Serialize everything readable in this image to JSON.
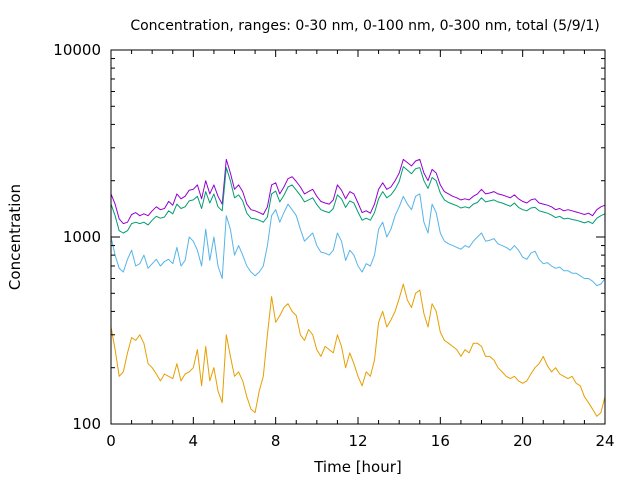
{
  "chart_data": {
    "type": "line",
    "title": "Concentration, ranges: 0-30 nm, 0-100 nm, 0-300 nm, total (5/9/1)",
    "xlabel": "Time [hour]",
    "ylabel": "Concentration",
    "xlim": [
      0,
      24
    ],
    "ylim": [
      100,
      10000
    ],
    "y_scale": "log",
    "x_ticks": [
      0,
      4,
      8,
      12,
      16,
      20,
      24
    ],
    "x_tick_labels": [
      "0",
      "4",
      "8",
      "12",
      "16",
      "20",
      "24"
    ],
    "y_ticks": [
      100,
      1000,
      10000
    ],
    "y_tick_labels": [
      "100",
      "1000",
      "10000"
    ],
    "grid": false,
    "legend": "none",
    "x": [
      0,
      0.2,
      0.4,
      0.6,
      0.8,
      1.0,
      1.2,
      1.4,
      1.6,
      1.8,
      2.0,
      2.2,
      2.4,
      2.6,
      2.8,
      3.0,
      3.2,
      3.4,
      3.6,
      3.8,
      4.0,
      4.2,
      4.4,
      4.6,
      4.8,
      5.0,
      5.2,
      5.4,
      5.6,
      5.8,
      6.0,
      6.2,
      6.4,
      6.6,
      6.8,
      7.0,
      7.2,
      7.4,
      7.6,
      7.8,
      8.0,
      8.2,
      8.4,
      8.6,
      8.8,
      9.0,
      9.2,
      9.4,
      9.6,
      9.8,
      10.0,
      10.2,
      10.4,
      10.6,
      10.8,
      11.0,
      11.2,
      11.4,
      11.6,
      11.8,
      12.0,
      12.2,
      12.4,
      12.6,
      12.8,
      13.0,
      13.2,
      13.4,
      13.6,
      13.8,
      14.0,
      14.2,
      14.4,
      14.6,
      14.8,
      15.0,
      15.2,
      15.4,
      15.6,
      15.8,
      16.0,
      16.2,
      16.4,
      16.6,
      16.8,
      17.0,
      17.2,
      17.4,
      17.6,
      17.8,
      18.0,
      18.2,
      18.4,
      18.6,
      18.8,
      19.0,
      19.2,
      19.4,
      19.6,
      19.8,
      20.0,
      20.2,
      20.4,
      20.6,
      20.8,
      21.0,
      21.2,
      21.4,
      21.6,
      21.8,
      22.0,
      22.2,
      22.4,
      22.6,
      22.8,
      23.0,
      23.2,
      23.4,
      23.6,
      23.8,
      24.0
    ],
    "series": [
      {
        "color": "#9400d3",
        "values": [
          1700,
          1500,
          1250,
          1180,
          1200,
          1320,
          1350,
          1300,
          1330,
          1300,
          1380,
          1450,
          1400,
          1420,
          1550,
          1480,
          1700,
          1600,
          1650,
          1780,
          1800,
          1900,
          1600,
          2000,
          1700,
          1900,
          1650,
          1500,
          2600,
          2200,
          1800,
          1900,
          1750,
          1500,
          1400,
          1380,
          1350,
          1320,
          1450,
          1900,
          1950,
          1700,
          1850,
          2050,
          2100,
          1980,
          1850,
          1700,
          1750,
          1800,
          1650,
          1550,
          1520,
          1500,
          1580,
          1900,
          1780,
          1600,
          1750,
          1700,
          1520,
          1350,
          1380,
          1340,
          1500,
          1800,
          1950,
          1800,
          1850,
          2000,
          2200,
          2600,
          2500,
          2400,
          2550,
          2600,
          2200,
          2000,
          2300,
          2200,
          1900,
          1750,
          1700,
          1650,
          1620,
          1580,
          1600,
          1580,
          1650,
          1700,
          1800,
          1700,
          1720,
          1750,
          1700,
          1680,
          1650,
          1620,
          1680,
          1600,
          1550,
          1520,
          1580,
          1600,
          1520,
          1500,
          1480,
          1450,
          1400,
          1420,
          1380,
          1400,
          1380,
          1360,
          1340,
          1320,
          1340,
          1300,
          1400,
          1450,
          1480
        ]
      },
      {
        "color": "#009e73",
        "values": [
          1500,
          1300,
          1080,
          1050,
          1080,
          1180,
          1200,
          1180,
          1200,
          1160,
          1230,
          1290,
          1260,
          1280,
          1380,
          1330,
          1500,
          1420,
          1450,
          1560,
          1580,
          1650,
          1420,
          1750,
          1520,
          1700,
          1450,
          1380,
          2350,
          2000,
          1620,
          1680,
          1560,
          1340,
          1260,
          1250,
          1230,
          1200,
          1280,
          1700,
          1760,
          1540,
          1670,
          1850,
          1900,
          1780,
          1670,
          1540,
          1580,
          1620,
          1490,
          1400,
          1370,
          1350,
          1420,
          1680,
          1600,
          1440,
          1560,
          1520,
          1360,
          1230,
          1260,
          1230,
          1350,
          1600,
          1750,
          1620,
          1680,
          1800,
          1980,
          2380,
          2280,
          2180,
          2320,
          2350,
          2000,
          1820,
          2080,
          2000,
          1720,
          1580,
          1530,
          1500,
          1470,
          1430,
          1450,
          1430,
          1500,
          1530,
          1620,
          1540,
          1560,
          1580,
          1540,
          1520,
          1490,
          1460,
          1520,
          1440,
          1400,
          1380,
          1430,
          1440,
          1380,
          1360,
          1340,
          1310,
          1270,
          1290,
          1250,
          1260,
          1240,
          1230,
          1210,
          1190,
          1210,
          1180,
          1260,
          1300,
          1330
        ]
      },
      {
        "color": "#56b4e9",
        "values": [
          1000,
          800,
          680,
          650,
          760,
          850,
          700,
          720,
          800,
          680,
          720,
          760,
          700,
          740,
          760,
          720,
          880,
          700,
          750,
          1000,
          950,
          850,
          700,
          1100,
          750,
          1000,
          700,
          600,
          1300,
          1100,
          800,
          900,
          800,
          700,
          650,
          620,
          650,
          700,
          900,
          1300,
          1400,
          1200,
          1350,
          1500,
          1400,
          1300,
          1100,
          950,
          1000,
          1050,
          900,
          830,
          820,
          800,
          850,
          1050,
          950,
          750,
          850,
          800,
          700,
          650,
          720,
          700,
          800,
          1100,
          1200,
          1000,
          1100,
          1300,
          1450,
          1650,
          1500,
          1400,
          1650,
          1700,
          1200,
          1050,
          1500,
          1350,
          1050,
          950,
          920,
          900,
          880,
          860,
          900,
          880,
          950,
          1000,
          1050,
          950,
          960,
          980,
          920,
          900,
          880,
          850,
          900,
          850,
          780,
          760,
          820,
          840,
          760,
          720,
          730,
          700,
          680,
          690,
          660,
          660,
          640,
          640,
          620,
          600,
          600,
          580,
          550,
          560,
          600
        ]
      },
      {
        "color": "#e69f00",
        "values": [
          330,
          250,
          180,
          190,
          240,
          290,
          280,
          300,
          270,
          210,
          200,
          185,
          170,
          185,
          180,
          175,
          210,
          170,
          185,
          190,
          200,
          250,
          160,
          260,
          170,
          200,
          150,
          130,
          300,
          230,
          180,
          190,
          170,
          140,
          120,
          115,
          150,
          180,
          300,
          480,
          350,
          380,
          420,
          440,
          400,
          380,
          300,
          280,
          320,
          300,
          250,
          230,
          260,
          250,
          240,
          300,
          260,
          200,
          240,
          210,
          180,
          160,
          190,
          180,
          220,
          350,
          400,
          330,
          360,
          400,
          470,
          560,
          460,
          420,
          500,
          520,
          390,
          330,
          440,
          400,
          310,
          280,
          270,
          260,
          250,
          230,
          250,
          240,
          270,
          270,
          260,
          230,
          230,
          220,
          200,
          190,
          180,
          175,
          180,
          170,
          165,
          170,
          185,
          200,
          210,
          230,
          205,
          190,
          200,
          185,
          180,
          175,
          180,
          165,
          160,
          140,
          130,
          120,
          110,
          115,
          140
        ]
      }
    ]
  }
}
